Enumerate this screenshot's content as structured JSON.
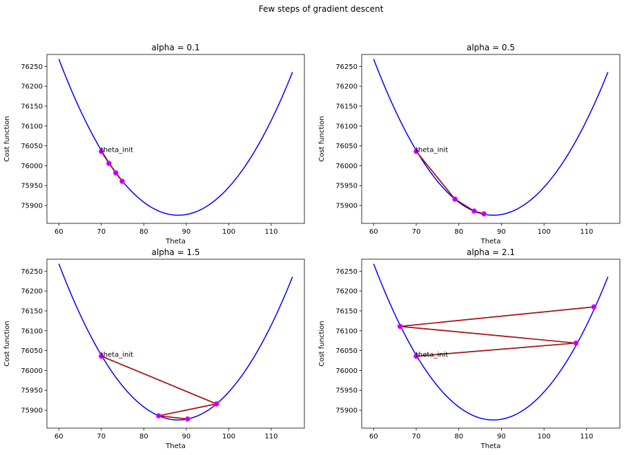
{
  "figure": {
    "suptitle": "Few steps of gradient descent"
  },
  "colors": {
    "curve": "#0000ff",
    "path": "#ff0000",
    "path_edge": "#000000",
    "marker": "#b200ff",
    "marker_edge": "#ff00ff"
  },
  "chart_data": [
    {
      "type": "line",
      "title": "alpha = 0.1",
      "xlabel": "Theta",
      "ylabel": "Cost function",
      "xlim": [
        57.2,
        117.8
      ],
      "ylim": [
        75855,
        76280
      ],
      "xticks": [
        60,
        70,
        80,
        90,
        100,
        110
      ],
      "yticks": [
        75900,
        75950,
        76000,
        76050,
        76100,
        76150,
        76200,
        76250
      ],
      "curve": {
        "name": "cost",
        "x_min": 60,
        "x_max": 115,
        "vertex_x": 88.1,
        "vertex_y": 75875.5,
        "coef": 0.4977
      },
      "steps": {
        "x": [
          70,
          71.8,
          73.4,
          74.9
        ],
        "y": [
          76036,
          76006,
          75982,
          75961
        ]
      },
      "annotation": {
        "text": "theta_init",
        "x": 70,
        "y": 76036
      }
    },
    {
      "type": "line",
      "title": "alpha = 0.5",
      "xlabel": "Theta",
      "ylabel": "Cost function",
      "xlim": [
        57.2,
        117.8
      ],
      "ylim": [
        75855,
        76280
      ],
      "xticks": [
        60,
        70,
        80,
        90,
        100,
        110
      ],
      "yticks": [
        75900,
        75950,
        76000,
        76050,
        76100,
        76150,
        76200,
        76250
      ],
      "curve": {
        "name": "cost",
        "x_min": 60,
        "x_max": 115,
        "vertex_x": 88.1,
        "vertex_y": 75875.5,
        "coef": 0.4977
      },
      "steps": {
        "x": [
          70,
          79.1,
          83.6,
          85.9
        ],
        "y": [
          76036,
          75916,
          75886,
          75879
        ]
      },
      "annotation": {
        "text": "theta_init",
        "x": 70,
        "y": 76036
      }
    },
    {
      "type": "line",
      "title": "alpha = 1.5",
      "xlabel": "Theta",
      "ylabel": "Cost function",
      "xlim": [
        57.2,
        117.8
      ],
      "ylim": [
        75855,
        76280
      ],
      "xticks": [
        60,
        70,
        80,
        90,
        100,
        110
      ],
      "yticks": [
        75900,
        75950,
        76000,
        76050,
        76100,
        76150,
        76200,
        76250
      ],
      "curve": {
        "name": "cost",
        "x_min": 60,
        "x_max": 115,
        "vertex_x": 88.1,
        "vertex_y": 75875.5,
        "coef": 0.4977
      },
      "steps": {
        "x": [
          70,
          97.1,
          83.5,
          90.3
        ],
        "y": [
          76036,
          75916,
          75886,
          75878
        ]
      },
      "annotation": {
        "text": "theta_init",
        "x": 70,
        "y": 76036
      }
    },
    {
      "type": "line",
      "title": "alpha = 2.1",
      "xlabel": "Theta",
      "ylabel": "Cost function",
      "xlim": [
        57.2,
        117.8
      ],
      "ylim": [
        75855,
        76280
      ],
      "xticks": [
        60,
        70,
        80,
        90,
        100,
        110
      ],
      "yticks": [
        75900,
        75950,
        76000,
        76050,
        76100,
        76150,
        76200,
        76250
      ],
      "curve": {
        "name": "cost",
        "x_min": 60,
        "x_max": 115,
        "vertex_x": 88.1,
        "vertex_y": 75875.5,
        "coef": 0.4977
      },
      "steps": {
        "x": [
          70,
          107.5,
          66.2,
          111.7
        ],
        "y": [
          76036,
          76069,
          76111,
          76160
        ]
      },
      "annotation": {
        "text": "theta_init",
        "x": 70,
        "y": 76036
      }
    }
  ]
}
